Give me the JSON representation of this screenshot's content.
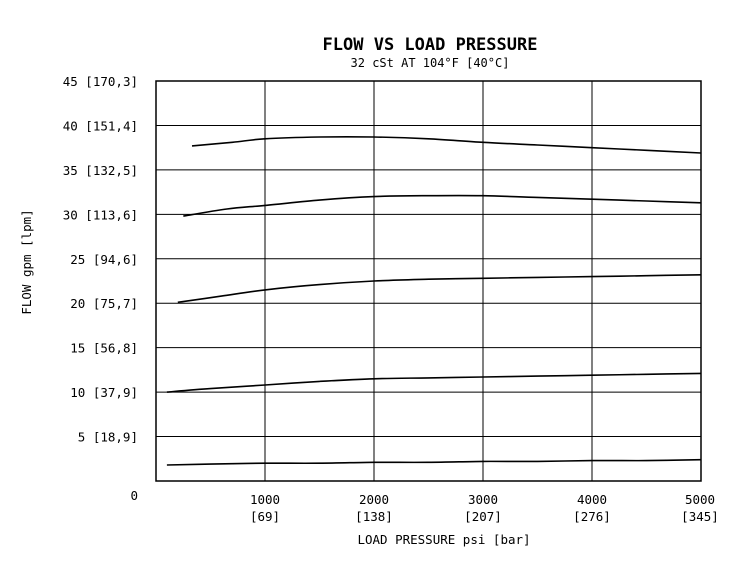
{
  "chart_data": {
    "type": "line",
    "title": "FLOW VS LOAD PRESSURE",
    "subtitle": "32 cSt AT 104°F [40°C]",
    "xlabel": "LOAD PRESSURE psi [bar]",
    "ylabel": "FLOW gpm [lpm]",
    "xlim": [
      0,
      5000
    ],
    "ylim": [
      0,
      45
    ],
    "grid": true,
    "x_ticks": [
      {
        "value": 0,
        "label": "0",
        "sub": ""
      },
      {
        "value": 1000,
        "label": "1000",
        "sub": "[69]"
      },
      {
        "value": 2000,
        "label": "2000",
        "sub": "[138]"
      },
      {
        "value": 3000,
        "label": "3000",
        "sub": "[207]"
      },
      {
        "value": 4000,
        "label": "4000",
        "sub": "[276]"
      },
      {
        "value": 5000,
        "label": "5000",
        "sub": "[345]"
      }
    ],
    "y_ticks": [
      {
        "value": 0,
        "label": "0"
      },
      {
        "value": 5,
        "label": "5 [18,9]"
      },
      {
        "value": 10,
        "label": "10 [37,9]"
      },
      {
        "value": 15,
        "label": "15 [56,8]"
      },
      {
        "value": 20,
        "label": "20 [75,7]"
      },
      {
        "value": 25,
        "label": "25 [94,6]"
      },
      {
        "value": 30,
        "label": "30 [113,6]"
      },
      {
        "value": 35,
        "label": "35 [132,5]"
      },
      {
        "value": 40,
        "label": "40 [151,4]"
      },
      {
        "value": 45,
        "label": "45 [170,3]"
      }
    ],
    "series": [
      {
        "x": [
          100,
          500,
          1000,
          1500,
          2000,
          2500,
          3000,
          3500,
          4000,
          4500,
          5000
        ],
        "y": [
          1.8,
          1.9,
          2.0,
          2.0,
          2.1,
          2.1,
          2.2,
          2.2,
          2.3,
          2.3,
          2.4
        ]
      },
      {
        "x": [
          100,
          500,
          1000,
          1500,
          2000,
          2500,
          3000,
          3500,
          4000,
          4500,
          5000
        ],
        "y": [
          10.0,
          10.4,
          10.8,
          11.2,
          11.5,
          11.6,
          11.7,
          11.8,
          11.9,
          12.0,
          12.1
        ]
      },
      {
        "x": [
          200,
          600,
          1000,
          1500,
          2000,
          2500,
          3000,
          3500,
          4000,
          4500,
          5000
        ],
        "y": [
          20.1,
          20.8,
          21.5,
          22.1,
          22.5,
          22.7,
          22.8,
          22.9,
          23.0,
          23.1,
          23.2
        ]
      },
      {
        "x": [
          250,
          650,
          1000,
          1500,
          2000,
          2500,
          3000,
          3500,
          4000,
          4500,
          5000
        ],
        "y": [
          29.8,
          30.6,
          31.0,
          31.6,
          32.0,
          32.1,
          32.1,
          31.9,
          31.7,
          31.5,
          31.3
        ]
      },
      {
        "x": [
          330,
          700,
          1000,
          1500,
          2000,
          2500,
          3000,
          3500,
          4000,
          4500,
          5000
        ],
        "y": [
          37.7,
          38.1,
          38.5,
          38.7,
          38.7,
          38.5,
          38.1,
          37.8,
          37.5,
          37.2,
          36.9
        ]
      }
    ]
  }
}
